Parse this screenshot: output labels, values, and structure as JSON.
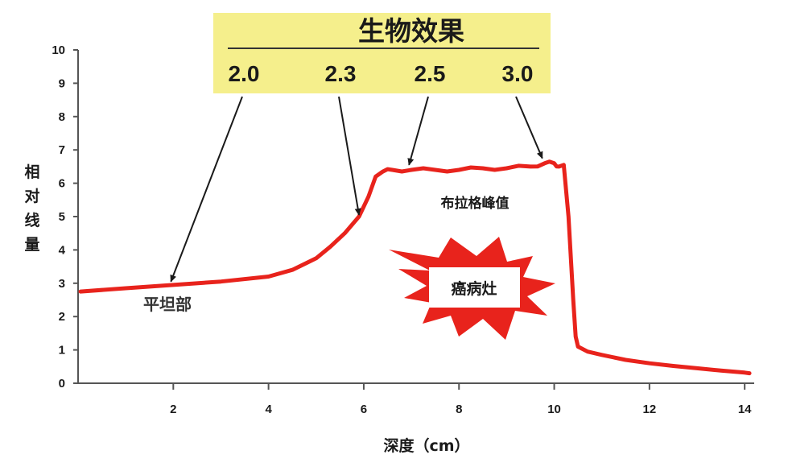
{
  "chart_data": {
    "type": "line",
    "title": "",
    "xlabel": "深度（cm）",
    "ylabel": [
      "相",
      "对",
      "线",
      "量"
    ],
    "xlim": [
      0,
      14.2
    ],
    "ylim": [
      0,
      10
    ],
    "x_ticks": [
      "2",
      "4",
      "6",
      "8",
      "10",
      "12",
      "14"
    ],
    "y_ticks": [
      "0",
      "1",
      "2",
      "3",
      "4",
      "5",
      "6",
      "7",
      "8",
      "9",
      "10"
    ],
    "grid": false,
    "series": [
      {
        "color": "#e8231c",
        "x": [
          0.05,
          1.0,
          2.0,
          3.0,
          4.0,
          4.5,
          5.0,
          5.3,
          5.6,
          5.9,
          6.1,
          6.25,
          6.4,
          6.6,
          7.0,
          7.5,
          8.0,
          8.5,
          9.0,
          9.5,
          9.8,
          10.0,
          10.1,
          10.2,
          10.3,
          10.4,
          10.45,
          10.5,
          10.7,
          11.0,
          11.5,
          12.0,
          12.5,
          13.0,
          13.5,
          14.0,
          14.1
        ],
        "y": [
          2.75,
          2.85,
          2.95,
          3.05,
          3.2,
          3.4,
          3.75,
          4.1,
          4.5,
          5.0,
          5.6,
          6.2,
          6.35,
          6.4,
          6.4,
          6.4,
          6.4,
          6.45,
          6.45,
          6.5,
          6.6,
          6.6,
          6.5,
          6.55,
          5.0,
          2.5,
          1.4,
          1.1,
          0.95,
          0.85,
          0.7,
          0.6,
          0.52,
          0.45,
          0.38,
          0.32,
          0.3
        ]
      }
    ],
    "annotations": {
      "bio_effect_title": "生物效果",
      "bio_effect_values": [
        "2.0",
        "2.3",
        "2.5",
        "3.0"
      ],
      "plateau_label": "平坦部",
      "peak_label": "布拉格峰值",
      "tumor_label": "癌病灶"
    },
    "arrows": [
      {
        "from_value": "2.0",
        "to": [
          1.95,
          3.05
        ]
      },
      {
        "from_value": "2.3",
        "to": [
          5.9,
          5.05
        ]
      },
      {
        "from_value": "2.5",
        "to": [
          6.95,
          6.55
        ]
      },
      {
        "from_value": "3.0",
        "to": [
          9.75,
          6.75
        ]
      }
    ],
    "colors": {
      "curve": "#e8231c",
      "box": "#f5ef8c",
      "burst": "#e8231c",
      "axis": "#555555",
      "arrow": "#1a1a1a"
    }
  }
}
